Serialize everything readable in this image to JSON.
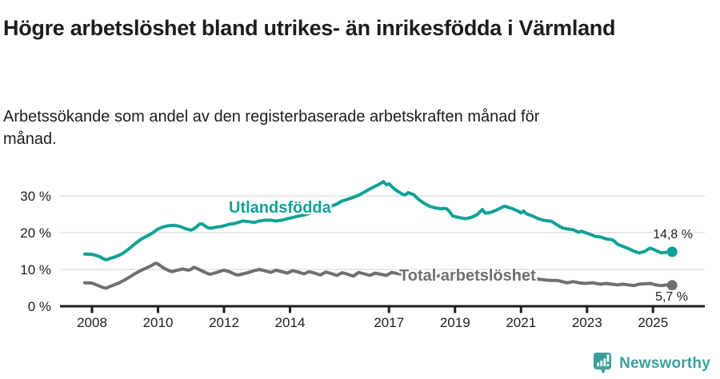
{
  "chart_data": {
    "type": "line",
    "title": "Högre arbetslöshet bland utrikes- än inrikesfödda i Värmland",
    "subtitle": "Arbetssökande som andel av den registerbaserade arbetskraften månad för månad.",
    "xlim": [
      2007.75,
      2025.9
    ],
    "ylim": [
      0,
      35
    ],
    "grid": "horizontal",
    "grid_color": "#d9d9d9",
    "axis_color": "#1d1d1b",
    "legend_position": "inline-labels-on-lines",
    "yticks": [
      {
        "value": 0,
        "label": "0 %"
      },
      {
        "value": 10,
        "label": "10 %"
      },
      {
        "value": 20,
        "label": "20 %"
      },
      {
        "value": 30,
        "label": "30 %"
      }
    ],
    "xticks": [
      {
        "value": 2008,
        "label": "2008"
      },
      {
        "value": 2010,
        "label": "2010"
      },
      {
        "value": 2012,
        "label": "2012"
      },
      {
        "value": 2014,
        "label": "2014"
      },
      {
        "value": 2017,
        "label": "2017"
      },
      {
        "value": 2019,
        "label": "2019"
      },
      {
        "value": 2021,
        "label": "2021"
      },
      {
        "value": 2023,
        "label": "2023"
      },
      {
        "value": 2025,
        "label": "2025"
      }
    ],
    "series": [
      {
        "name": "Utlandsfödda",
        "color": "#10a296",
        "end_label": "14,8 %",
        "end_value": 14.8,
        "points": [
          [
            2007.78,
            14.2
          ],
          [
            2008.0,
            14.1
          ],
          [
            2008.08,
            13.9
          ],
          [
            2008.17,
            13.7
          ],
          [
            2008.25,
            13.4
          ],
          [
            2008.33,
            13.0
          ],
          [
            2008.42,
            12.6
          ],
          [
            2008.5,
            12.8
          ],
          [
            2008.58,
            13.1
          ],
          [
            2008.67,
            13.3
          ],
          [
            2008.75,
            13.6
          ],
          [
            2008.83,
            13.9
          ],
          [
            2008.92,
            14.3
          ],
          [
            2009.0,
            14.8
          ],
          [
            2009.17,
            16.0
          ],
          [
            2009.33,
            17.2
          ],
          [
            2009.5,
            18.3
          ],
          [
            2009.67,
            19.1
          ],
          [
            2009.83,
            19.9
          ],
          [
            2010.0,
            21.0
          ],
          [
            2010.17,
            21.6
          ],
          [
            2010.33,
            21.9
          ],
          [
            2010.5,
            22.0
          ],
          [
            2010.67,
            21.7
          ],
          [
            2010.83,
            21.1
          ],
          [
            2011.0,
            20.7
          ],
          [
            2011.08,
            21.0
          ],
          [
            2011.17,
            21.6
          ],
          [
            2011.25,
            22.3
          ],
          [
            2011.33,
            22.4
          ],
          [
            2011.42,
            21.9
          ],
          [
            2011.5,
            21.4
          ],
          [
            2011.58,
            21.2
          ],
          [
            2011.67,
            21.3
          ],
          [
            2011.75,
            21.5
          ],
          [
            2011.92,
            21.7
          ],
          [
            2012.0,
            21.9
          ],
          [
            2012.17,
            22.3
          ],
          [
            2012.33,
            22.5
          ],
          [
            2012.5,
            23.0
          ],
          [
            2012.58,
            23.2
          ],
          [
            2012.75,
            23.0
          ],
          [
            2012.92,
            22.8
          ],
          [
            2013.08,
            23.2
          ],
          [
            2013.25,
            23.4
          ],
          [
            2013.42,
            23.4
          ],
          [
            2013.58,
            23.2
          ],
          [
            2013.75,
            23.4
          ],
          [
            2013.92,
            23.8
          ],
          [
            2014.08,
            24.1
          ],
          [
            2014.25,
            24.5
          ],
          [
            2014.42,
            24.8
          ],
          [
            2014.58,
            25.2
          ],
          [
            2014.75,
            25.7
          ],
          [
            2014.92,
            26.2
          ],
          [
            2015.08,
            26.6
          ],
          [
            2015.25,
            27.2
          ],
          [
            2015.42,
            27.8
          ],
          [
            2015.58,
            28.6
          ],
          [
            2015.75,
            29.1
          ],
          [
            2015.92,
            29.6
          ],
          [
            2016.08,
            30.2
          ],
          [
            2016.25,
            31.0
          ],
          [
            2016.42,
            31.9
          ],
          [
            2016.58,
            32.6
          ],
          [
            2016.75,
            33.4
          ],
          [
            2016.83,
            33.9
          ],
          [
            2016.92,
            33.0
          ],
          [
            2017.0,
            33.3
          ],
          [
            2017.08,
            32.6
          ],
          [
            2017.17,
            31.8
          ],
          [
            2017.33,
            30.9
          ],
          [
            2017.42,
            30.4
          ],
          [
            2017.5,
            30.3
          ],
          [
            2017.58,
            30.9
          ],
          [
            2017.67,
            30.6
          ],
          [
            2017.75,
            30.3
          ],
          [
            2017.83,
            29.6
          ],
          [
            2017.92,
            28.9
          ],
          [
            2018.08,
            27.9
          ],
          [
            2018.25,
            27.1
          ],
          [
            2018.42,
            26.7
          ],
          [
            2018.58,
            26.5
          ],
          [
            2018.67,
            26.6
          ],
          [
            2018.75,
            26.5
          ],
          [
            2018.83,
            25.8
          ],
          [
            2018.92,
            24.6
          ],
          [
            2019.08,
            24.2
          ],
          [
            2019.25,
            23.9
          ],
          [
            2019.33,
            23.8
          ],
          [
            2019.5,
            24.2
          ],
          [
            2019.67,
            24.9
          ],
          [
            2019.75,
            25.6
          ],
          [
            2019.83,
            26.3
          ],
          [
            2019.92,
            25.3
          ],
          [
            2020.08,
            25.5
          ],
          [
            2020.25,
            26.1
          ],
          [
            2020.42,
            26.9
          ],
          [
            2020.5,
            27.2
          ],
          [
            2020.58,
            27.0
          ],
          [
            2020.75,
            26.5
          ],
          [
            2020.92,
            25.8
          ],
          [
            2021.0,
            25.4
          ],
          [
            2021.08,
            25.9
          ],
          [
            2021.17,
            25.1
          ],
          [
            2021.33,
            24.6
          ],
          [
            2021.5,
            23.9
          ],
          [
            2021.67,
            23.4
          ],
          [
            2021.83,
            23.2
          ],
          [
            2021.92,
            23.1
          ],
          [
            2022.08,
            22.2
          ],
          [
            2022.25,
            21.3
          ],
          [
            2022.42,
            21.0
          ],
          [
            2022.58,
            20.8
          ],
          [
            2022.75,
            20.1
          ],
          [
            2022.83,
            20.4
          ],
          [
            2022.92,
            20.1
          ],
          [
            2023.08,
            19.6
          ],
          [
            2023.25,
            19.0
          ],
          [
            2023.42,
            18.8
          ],
          [
            2023.58,
            18.3
          ],
          [
            2023.75,
            18.1
          ],
          [
            2023.83,
            17.7
          ],
          [
            2023.92,
            16.9
          ],
          [
            2024.08,
            16.3
          ],
          [
            2024.25,
            15.7
          ],
          [
            2024.42,
            15.0
          ],
          [
            2024.58,
            14.5
          ],
          [
            2024.75,
            14.9
          ],
          [
            2024.83,
            15.4
          ],
          [
            2024.92,
            15.8
          ],
          [
            2025.08,
            15.2
          ],
          [
            2025.25,
            14.5
          ],
          [
            2025.42,
            14.7
          ],
          [
            2025.58,
            14.8
          ]
        ]
      },
      {
        "name": "Total arbetslöshet",
        "color": "#6f6f73",
        "end_label": "5,7 %",
        "end_value": 5.7,
        "points": [
          [
            2007.78,
            6.4
          ],
          [
            2008.0,
            6.3
          ],
          [
            2008.08,
            6.0
          ],
          [
            2008.17,
            5.7
          ],
          [
            2008.25,
            5.4
          ],
          [
            2008.33,
            5.1
          ],
          [
            2008.42,
            4.9
          ],
          [
            2008.5,
            5.2
          ],
          [
            2008.58,
            5.5
          ],
          [
            2008.67,
            5.8
          ],
          [
            2008.83,
            6.4
          ],
          [
            2009.0,
            7.2
          ],
          [
            2009.17,
            8.1
          ],
          [
            2009.33,
            9.0
          ],
          [
            2009.5,
            9.8
          ],
          [
            2009.67,
            10.5
          ],
          [
            2009.83,
            11.2
          ],
          [
            2009.92,
            11.7
          ],
          [
            2010.0,
            11.5
          ],
          [
            2010.17,
            10.4
          ],
          [
            2010.33,
            9.7
          ],
          [
            2010.42,
            9.4
          ],
          [
            2010.58,
            9.8
          ],
          [
            2010.75,
            10.1
          ],
          [
            2010.92,
            9.8
          ],
          [
            2011.0,
            10.0
          ],
          [
            2011.08,
            10.6
          ],
          [
            2011.17,
            10.3
          ],
          [
            2011.33,
            9.6
          ],
          [
            2011.5,
            8.9
          ],
          [
            2011.58,
            8.7
          ],
          [
            2011.75,
            9.1
          ],
          [
            2011.92,
            9.6
          ],
          [
            2012.0,
            9.8
          ],
          [
            2012.17,
            9.4
          ],
          [
            2012.33,
            8.7
          ],
          [
            2012.42,
            8.5
          ],
          [
            2012.58,
            8.8
          ],
          [
            2012.75,
            9.2
          ],
          [
            2012.92,
            9.7
          ],
          [
            2013.08,
            10.0
          ],
          [
            2013.25,
            9.6
          ],
          [
            2013.42,
            9.2
          ],
          [
            2013.58,
            9.8
          ],
          [
            2013.75,
            9.4
          ],
          [
            2013.92,
            9.0
          ],
          [
            2014.08,
            9.7
          ],
          [
            2014.25,
            9.3
          ],
          [
            2014.42,
            8.8
          ],
          [
            2014.58,
            9.4
          ],
          [
            2014.75,
            9.0
          ],
          [
            2014.92,
            8.5
          ],
          [
            2015.08,
            9.3
          ],
          [
            2015.25,
            8.9
          ],
          [
            2015.42,
            8.4
          ],
          [
            2015.58,
            9.1
          ],
          [
            2015.75,
            8.7
          ],
          [
            2015.92,
            8.2
          ],
          [
            2016.08,
            9.2
          ],
          [
            2016.25,
            8.8
          ],
          [
            2016.42,
            8.4
          ],
          [
            2016.58,
            9.0
          ],
          [
            2016.75,
            8.7
          ],
          [
            2016.92,
            8.4
          ],
          [
            2017.08,
            9.2
          ],
          [
            2017.25,
            8.9
          ],
          [
            2017.42,
            8.6
          ],
          [
            2017.58,
            8.9
          ],
          [
            2017.75,
            8.6
          ],
          [
            2017.92,
            8.3
          ],
          [
            2018.08,
            8.7
          ],
          [
            2018.25,
            8.4
          ],
          [
            2018.42,
            8.1
          ],
          [
            2018.58,
            8.4
          ],
          [
            2018.75,
            8.1
          ],
          [
            2018.92,
            7.8
          ],
          [
            2019.08,
            8.1
          ],
          [
            2019.25,
            7.8
          ],
          [
            2019.42,
            7.5
          ],
          [
            2019.58,
            7.8
          ],
          [
            2019.75,
            7.6
          ],
          [
            2019.92,
            7.4
          ],
          [
            2020.08,
            7.7
          ],
          [
            2020.25,
            8.0
          ],
          [
            2020.42,
            8.3
          ],
          [
            2020.58,
            8.5
          ],
          [
            2020.75,
            8.2
          ],
          [
            2020.92,
            7.9
          ],
          [
            2021.08,
            8.1
          ],
          [
            2021.25,
            7.8
          ],
          [
            2021.42,
            7.5
          ],
          [
            2021.58,
            7.3
          ],
          [
            2021.75,
            7.1
          ],
          [
            2021.92,
            7.0
          ],
          [
            2022.08,
            7.0
          ],
          [
            2022.17,
            6.9
          ],
          [
            2022.33,
            6.5
          ],
          [
            2022.42,
            6.4
          ],
          [
            2022.58,
            6.7
          ],
          [
            2022.75,
            6.4
          ],
          [
            2022.92,
            6.2
          ],
          [
            2023.08,
            6.3
          ],
          [
            2023.17,
            6.4
          ],
          [
            2023.33,
            6.1
          ],
          [
            2023.42,
            6.0
          ],
          [
            2023.58,
            6.2
          ],
          [
            2023.75,
            6.0
          ],
          [
            2023.92,
            5.8
          ],
          [
            2024.08,
            6.0
          ],
          [
            2024.25,
            5.8
          ],
          [
            2024.42,
            5.6
          ],
          [
            2024.58,
            6.0
          ],
          [
            2024.75,
            6.1
          ],
          [
            2024.92,
            6.2
          ],
          [
            2025.08,
            5.8
          ],
          [
            2025.25,
            5.6
          ],
          [
            2025.42,
            5.8
          ],
          [
            2025.58,
            5.7
          ]
        ]
      }
    ]
  },
  "footer": {
    "brand": "Newsworthy",
    "brand_color": "#3d9f9c"
  }
}
